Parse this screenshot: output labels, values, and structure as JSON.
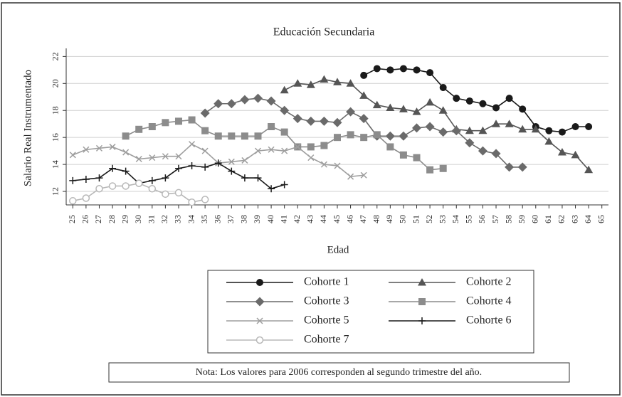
{
  "chart_data": {
    "type": "line",
    "title": "Educación Secundaria",
    "x_label": "Edad",
    "y_label": "Salario Real Instrumentado",
    "note": "Nota: Los valores para 2006 corresponden al segundo trimestre del año.",
    "xlim": [
      24.5,
      65.5
    ],
    "ylim": [
      11,
      22.6
    ],
    "xticks": [
      25,
      26,
      27,
      28,
      29,
      30,
      31,
      32,
      33,
      34,
      35,
      36,
      37,
      38,
      39,
      40,
      41,
      42,
      43,
      44,
      45,
      46,
      47,
      48,
      49,
      50,
      51,
      52,
      53,
      54,
      55,
      56,
      57,
      58,
      59,
      60,
      61,
      62,
      63,
      64,
      65
    ],
    "yticks": [
      12,
      14,
      16,
      18,
      20,
      22
    ],
    "grid": true,
    "series": [
      {
        "name": "Cohorte 1",
        "color": "#1a1a1a",
        "marker": "circle",
        "x": [
          47,
          48,
          49,
          50,
          51,
          52,
          53,
          54,
          55,
          56,
          57,
          58,
          59,
          60,
          61,
          62,
          63,
          64
        ],
        "values": [
          20.6,
          21.1,
          21.0,
          21.1,
          21.0,
          20.8,
          19.7,
          18.9,
          18.7,
          18.5,
          18.2,
          18.9,
          18.1,
          16.8,
          16.5,
          16.4,
          16.8,
          16.8
        ]
      },
      {
        "name": "Cohorte 2",
        "color": "#555555",
        "marker": "triangle",
        "x": [
          41,
          42,
          43,
          44,
          45,
          46,
          47,
          48,
          49,
          50,
          51,
          52,
          53,
          54,
          55,
          56,
          57,
          58,
          59,
          60,
          61,
          62,
          63,
          64
        ],
        "values": [
          19.5,
          20.0,
          19.9,
          20.3,
          20.1,
          20.0,
          19.1,
          18.4,
          18.2,
          18.1,
          17.9,
          18.6,
          18.0,
          16.6,
          16.5,
          16.5,
          17.0,
          17.0,
          16.6,
          16.6,
          15.7,
          14.9,
          14.7,
          13.6
        ]
      },
      {
        "name": "Cohorte 3",
        "color": "#6a6a6a",
        "marker": "diamond",
        "x": [
          35,
          36,
          37,
          38,
          39,
          40,
          41,
          42,
          43,
          44,
          45,
          46,
          47,
          48,
          49,
          50,
          51,
          52,
          53,
          54,
          55,
          56,
          57,
          58,
          59
        ],
        "values": [
          17.8,
          18.5,
          18.5,
          18.8,
          18.9,
          18.7,
          18.0,
          17.4,
          17.2,
          17.2,
          17.1,
          17.9,
          17.4,
          16.1,
          16.1,
          16.1,
          16.7,
          16.8,
          16.4,
          16.5,
          15.6,
          15.0,
          14.8,
          13.8,
          13.8
        ]
      },
      {
        "name": "Cohorte 4",
        "color": "#8c8c8c",
        "marker": "square",
        "x": [
          29,
          30,
          31,
          32,
          33,
          34,
          35,
          36,
          37,
          38,
          39,
          40,
          41,
          42,
          43,
          44,
          45,
          46,
          47,
          48,
          49,
          50,
          51,
          52,
          53
        ],
        "values": [
          16.1,
          16.6,
          16.8,
          17.1,
          17.2,
          17.3,
          16.5,
          16.1,
          16.1,
          16.1,
          16.1,
          16.8,
          16.4,
          15.3,
          15.3,
          15.4,
          16.0,
          16.2,
          16.0,
          16.2,
          15.3,
          14.7,
          14.5,
          13.6,
          13.7
        ]
      },
      {
        "name": "Cohorte 5",
        "color": "#9e9e9e",
        "marker": "x",
        "x": [
          25,
          26,
          27,
          28,
          29,
          30,
          31,
          32,
          33,
          34,
          35,
          36,
          37,
          38,
          39,
          40,
          41,
          42,
          43,
          44,
          45,
          46,
          47
        ],
        "values": [
          14.7,
          15.1,
          15.2,
          15.3,
          14.9,
          14.4,
          14.5,
          14.6,
          14.6,
          15.5,
          15.0,
          14.1,
          14.2,
          14.3,
          15.0,
          15.1,
          15.0,
          15.3,
          14.5,
          14.0,
          13.9,
          13.1,
          13.2
        ]
      },
      {
        "name": "Cohorte 6",
        "color": "#1a1a1a",
        "marker": "plus",
        "x": [
          25,
          26,
          27,
          28,
          29,
          30,
          31,
          32,
          33,
          34,
          35,
          36,
          37,
          38,
          39,
          40,
          41
        ],
        "values": [
          12.8,
          12.9,
          13.0,
          13.7,
          13.5,
          12.6,
          12.8,
          13.0,
          13.7,
          13.9,
          13.8,
          14.1,
          13.5,
          13.0,
          13.0,
          12.2,
          12.5
        ]
      },
      {
        "name": "Cohorte 7",
        "color": "#b8b8b8",
        "marker": "open-circle",
        "x": [
          25,
          26,
          27,
          28,
          29,
          30,
          31,
          32,
          33,
          34,
          35
        ],
        "values": [
          11.3,
          11.5,
          12.2,
          12.4,
          12.4,
          12.6,
          12.2,
          11.8,
          11.9,
          11.2,
          11.4
        ]
      }
    ]
  }
}
